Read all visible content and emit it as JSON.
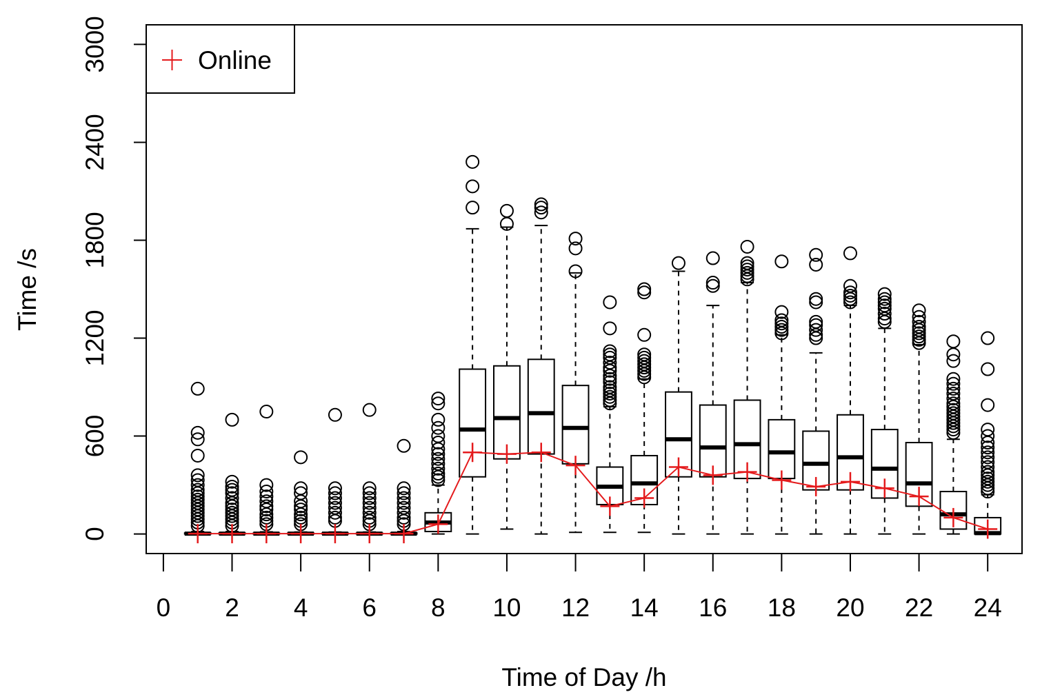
{
  "chart_data": {
    "type": "box",
    "xlabel": "Time of Day /h",
    "ylabel": "Time /s",
    "xlim": [
      -0.5,
      25
    ],
    "ylim": [
      -120,
      3120
    ],
    "x_ticks": [
      "0",
      "2",
      "4",
      "6",
      "8",
      "10",
      "12",
      "14",
      "16",
      "18",
      "20",
      "22",
      "24"
    ],
    "y_ticks": [
      "0",
      "600",
      "1200",
      "1800",
      "2400",
      "3000"
    ],
    "legend": {
      "position": "top-left",
      "entries": [
        {
          "label": "Online",
          "marker": "+",
          "color": "#e41a1c"
        }
      ]
    },
    "colors": {
      "boxes": "#000000",
      "online": "#e41a1c"
    },
    "boxes": [
      {
        "hour": 1,
        "q1": 0,
        "median": 2,
        "q3": 6,
        "whisker_low": 0,
        "whisker_high": 15,
        "outliers": [
          890,
          620,
          580,
          480,
          360,
          330,
          300,
          270,
          250,
          230,
          210,
          190,
          170,
          150,
          130,
          110,
          90,
          70,
          50
        ]
      },
      {
        "hour": 2,
        "q1": 0,
        "median": 2,
        "q3": 6,
        "whisker_low": 0,
        "whisker_high": 15,
        "outliers": [
          700,
          320,
          290,
          270,
          250,
          220,
          190,
          170,
          150,
          130,
          110,
          90,
          70,
          50
        ]
      },
      {
        "hour": 3,
        "q1": 0,
        "median": 2,
        "q3": 5,
        "whisker_low": 0,
        "whisker_high": 13,
        "outliers": [
          750,
          300,
          260,
          230,
          200,
          170,
          150,
          120,
          100,
          80,
          60
        ]
      },
      {
        "hour": 4,
        "q1": 0,
        "median": 2,
        "q3": 5,
        "whisker_low": 0,
        "whisker_high": 12,
        "outliers": [
          470,
          280,
          250,
          200,
          170,
          150,
          120,
          100,
          80,
          60
        ]
      },
      {
        "hour": 5,
        "q1": 0,
        "median": 2,
        "q3": 5,
        "whisker_low": 0,
        "whisker_high": 12,
        "outliers": [
          730,
          280,
          250,
          220,
          190,
          160,
          130,
          100,
          80
        ]
      },
      {
        "hour": 6,
        "q1": 0,
        "median": 2,
        "q3": 5,
        "whisker_low": 0,
        "whisker_high": 12,
        "outliers": [
          760,
          280,
          250,
          220,
          190,
          160,
          130,
          100,
          80,
          60
        ]
      },
      {
        "hour": 7,
        "q1": 0,
        "median": 2,
        "q3": 6,
        "whisker_low": 0,
        "whisker_high": 15,
        "outliers": [
          540,
          280,
          250,
          220,
          190,
          160,
          130,
          100,
          80,
          60
        ]
      },
      {
        "hour": 8,
        "q1": 15,
        "median": 70,
        "q3": 130,
        "whisker_low": 0,
        "whisker_high": 300,
        "outliers": [
          830,
          800,
          700,
          650,
          600,
          560,
          520,
          490,
          460,
          430,
          400,
          370,
          350,
          330
        ]
      },
      {
        "hour": 9,
        "q1": 350,
        "median": 640,
        "q3": 1010,
        "whisker_low": 0,
        "whisker_high": 1870,
        "outliers": [
          2280,
          2130,
          2000
        ]
      },
      {
        "hour": 10,
        "q1": 460,
        "median": 710,
        "q3": 1030,
        "whisker_low": 30,
        "whisker_high": 1880,
        "outliers": [
          1980,
          1900
        ]
      },
      {
        "hour": 11,
        "q1": 490,
        "median": 740,
        "q3": 1070,
        "whisker_low": 0,
        "whisker_high": 1890,
        "outliers": [
          2020,
          2000,
          1970
        ]
      },
      {
        "hour": 12,
        "q1": 430,
        "median": 650,
        "q3": 910,
        "whisker_low": 10,
        "whisker_high": 1600,
        "outliers": [
          1810,
          1750,
          1610
        ]
      },
      {
        "hour": 13,
        "q1": 180,
        "median": 290,
        "q3": 410,
        "whisker_low": 10,
        "whisker_high": 780,
        "outliers": [
          1420,
          1260,
          1120,
          1100,
          1080,
          1050,
          1020,
          1000,
          970,
          950,
          930,
          900,
          880,
          860,
          840,
          820,
          800
        ]
      },
      {
        "hour": 14,
        "q1": 180,
        "median": 310,
        "q3": 480,
        "whisker_low": 10,
        "whisker_high": 950,
        "outliers": [
          1500,
          1480,
          1220,
          1100,
          1080,
          1060,
          1040,
          1020,
          1000,
          980,
          960
        ]
      },
      {
        "hour": 15,
        "q1": 350,
        "median": 580,
        "q3": 870,
        "whisker_low": 0,
        "whisker_high": 1610,
        "outliers": [
          1660
        ]
      },
      {
        "hour": 16,
        "q1": 350,
        "median": 530,
        "q3": 790,
        "whisker_low": 0,
        "whisker_high": 1400,
        "outliers": [
          1690,
          1540,
          1520
        ]
      },
      {
        "hour": 17,
        "q1": 340,
        "median": 550,
        "q3": 820,
        "whisker_low": 0,
        "whisker_high": 1540,
        "outliers": [
          1760,
          1660,
          1640,
          1620,
          1600,
          1580,
          1560
        ]
      },
      {
        "hour": 18,
        "q1": 340,
        "median": 500,
        "q3": 700,
        "whisker_low": 0,
        "whisker_high": 1220,
        "outliers": [
          1670,
          1360,
          1310,
          1290,
          1270,
          1250,
          1230
        ]
      },
      {
        "hour": 19,
        "q1": 270,
        "median": 430,
        "q3": 630,
        "whisker_low": 0,
        "whisker_high": 1110,
        "outliers": [
          1710,
          1650,
          1440,
          1420,
          1300,
          1280,
          1250,
          1220,
          1200
        ]
      },
      {
        "hour": 20,
        "q1": 270,
        "median": 470,
        "q3": 730,
        "whisker_low": 0,
        "whisker_high": 1400,
        "outliers": [
          1720,
          1520,
          1480,
          1460,
          1440,
          1420
        ]
      },
      {
        "hour": 21,
        "q1": 220,
        "median": 400,
        "q3": 640,
        "whisker_low": 0,
        "whisker_high": 1260,
        "outliers": [
          1470,
          1440,
          1420,
          1400,
          1380,
          1350,
          1320,
          1300
        ]
      },
      {
        "hour": 22,
        "q1": 170,
        "median": 310,
        "q3": 560,
        "whisker_low": 0,
        "whisker_high": 1160,
        "outliers": [
          1370,
          1330,
          1300,
          1270,
          1250,
          1230,
          1210,
          1190,
          1170
        ]
      },
      {
        "hour": 23,
        "q1": 30,
        "median": 120,
        "q3": 260,
        "whisker_low": 0,
        "whisker_high": 580,
        "outliers": [
          1180,
          1100,
          1060,
          950,
          920,
          890,
          860,
          830,
          800,
          780,
          760,
          740,
          720,
          700,
          680,
          660,
          640,
          620
        ]
      },
      {
        "hour": 24,
        "q1": 0,
        "median": 5,
        "q3": 100,
        "whisker_low": 0,
        "whisker_high": 240,
        "outliers": [
          1200,
          1010,
          790,
          640,
          600,
          560,
          530,
          500,
          470,
          440,
          410,
          380,
          360,
          340,
          320,
          300,
          280,
          260
        ]
      }
    ],
    "series": [
      {
        "name": "Online",
        "x": [
          1,
          2,
          3,
          4,
          5,
          6,
          7,
          8,
          9,
          10,
          11,
          12,
          13,
          14,
          15,
          16,
          17,
          18,
          19,
          20,
          21,
          22,
          23,
          24
        ],
        "y": [
          2,
          2,
          2,
          2,
          2,
          2,
          2,
          60,
          500,
          490,
          500,
          420,
          170,
          220,
          410,
          360,
          380,
          330,
          290,
          320,
          280,
          230,
          100,
          30
        ]
      }
    ]
  }
}
